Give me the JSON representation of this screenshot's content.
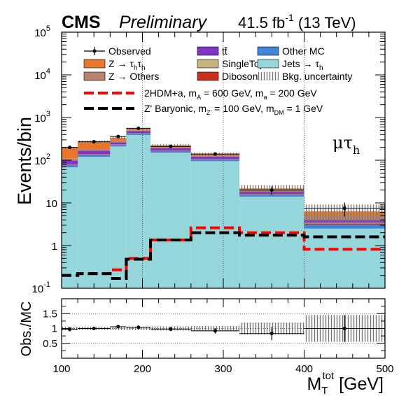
{
  "header": {
    "experiment": "CMS",
    "status": "Preliminary",
    "lumi": "41.5 fb",
    "lumi_exp": "-1",
    "energy": " (13 TeV)"
  },
  "channel_label": "μτ",
  "channel_sub": "h",
  "ylabel_main": "Events/bin",
  "ylabel_ratio": "Obs./MC",
  "xlabel_main": "M",
  "xlabel_sup": "tot",
  "xlabel_sub": "T",
  "xlabel_unit": " [GeV]",
  "colors": {
    "ztautau": "#E8772C",
    "zothers": "#B7836E",
    "ttbar": "#7F36C7",
    "singletop": "#C8B57E",
    "diboson": "#C7311B",
    "othermc": "#3F86D8",
    "jets": "#95D6DB",
    "sig1": "#FF0000",
    "sig2": "#000000"
  },
  "legend": [
    {
      "key": "observed",
      "label": "Observed"
    },
    {
      "key": "ttbar",
      "label": "tt̄"
    },
    {
      "key": "othermc",
      "label": "Other MC"
    },
    {
      "key": "ztautau",
      "label": "Z → τ",
      "sub": "h",
      "mid": "τ",
      "sub2": "h"
    },
    {
      "key": "singletop",
      "label": "SingleTop"
    },
    {
      "key": "jets",
      "label": "Jets → τ",
      "sub": "h"
    },
    {
      "key": "zothers",
      "label": "Z → Others"
    },
    {
      "key": "diboson",
      "label": "Diboson"
    },
    {
      "key": "bkgunc",
      "label": "Bkg. uncertainty"
    }
  ],
  "legend_signals": [
    {
      "key": "sig1",
      "label": "2HDM+a, m",
      "s1": "A",
      "l2": " = 600 GeV, m",
      "s2": "a",
      "l3": " = 200 GeV"
    },
    {
      "key": "sig2",
      "label": "Z' Baryonic, m",
      "s1": "Z'",
      "l2": " = 100 GeV, m",
      "s2": "DM",
      "l3": " = 1 GeV"
    }
  ],
  "chart_data": [
    {
      "type": "bar",
      "stacked": true,
      "ylog": true,
      "xlim": [
        100,
        500
      ],
      "ylim": [
        0.1,
        100000
      ],
      "x_ticks": [
        100,
        200,
        300,
        400,
        500
      ],
      "y_ticks": [
        {
          "v": 0.1,
          "base": "10",
          "exp": "-1"
        },
        {
          "v": 1,
          "base": "1",
          "exp": ""
        },
        {
          "v": 10,
          "base": "10",
          "exp": ""
        },
        {
          "v": 100,
          "base": "10",
          "exp": "2"
        },
        {
          "v": 1000,
          "base": "10",
          "exp": "3"
        },
        {
          "v": 10000,
          "base": "10",
          "exp": "4"
        },
        {
          "v": 100000,
          "base": "10",
          "exp": "5"
        }
      ],
      "vlines": [
        200,
        300,
        400
      ],
      "bin_edges": [
        100,
        120,
        160,
        180,
        210,
        260,
        320,
        400,
        500
      ],
      "series": [
        {
          "key": "jets",
          "values": [
            68,
            120,
            210,
            390,
            150,
            95,
            14,
            2.5
          ]
        },
        {
          "key": "othermc",
          "values": [
            8,
            12,
            17,
            30,
            11,
            8,
            1.5,
            0.6
          ]
        },
        {
          "key": "diboson",
          "values": [
            2,
            4,
            4,
            6,
            3,
            2,
            0.5,
            0.2
          ]
        },
        {
          "key": "singletop",
          "values": [
            1,
            2,
            3,
            4,
            2,
            1,
            0.3,
            0.1
          ]
        },
        {
          "key": "ttbar",
          "values": [
            20,
            30,
            30,
            50,
            25,
            15,
            2,
            0.6
          ]
        },
        {
          "key": "zothers",
          "values": [
            10,
            15,
            15,
            20,
            10,
            8,
            1.5,
            0.8
          ]
        },
        {
          "key": "ztautau",
          "values": [
            85,
            90,
            55,
            40,
            22,
            10,
            2,
            1.5
          ]
        }
      ],
      "observed": {
        "x": [
          110,
          140,
          170,
          195,
          235,
          290,
          360,
          450
        ],
        "y": [
          200,
          270,
          360,
          560,
          210,
          140,
          20,
          7.5
        ],
        "err": [
          14,
          16,
          19,
          24,
          14,
          12,
          4.5,
          2.7
        ]
      },
      "signals": [
        {
          "key": "sig1",
          "values": [
            0.2,
            0.22,
            0.27,
            0.5,
            1.35,
            2.6,
            2.0,
            0.82
          ]
        },
        {
          "key": "sig2",
          "values": [
            0.2,
            0.22,
            0.17,
            0.48,
            1.35,
            2.0,
            1.75,
            1.6
          ]
        }
      ]
    },
    {
      "type": "scatter",
      "xlim": [
        100,
        500
      ],
      "ylim": [
        0,
        2
      ],
      "y_ticks": [
        0.5,
        1,
        1.5
      ],
      "x_ticks": [
        100,
        200,
        300,
        400,
        500
      ],
      "hlines": [
        0.5,
        1,
        1.5
      ],
      "bin_edges": [
        100,
        120,
        160,
        180,
        210,
        260,
        320,
        400,
        500
      ],
      "unc": [
        0.06,
        0.06,
        0.06,
        0.06,
        0.07,
        0.08,
        0.2,
        0.45
      ],
      "points": {
        "x": [
          110,
          140,
          170,
          195,
          235,
          290,
          360,
          450
        ],
        "y": [
          0.97,
          1.0,
          1.06,
          1.04,
          0.98,
          0.92,
          0.83,
          1.0
        ],
        "err": [
          0.07,
          0.06,
          0.06,
          0.06,
          0.07,
          0.09,
          0.22,
          0.45
        ]
      }
    }
  ]
}
